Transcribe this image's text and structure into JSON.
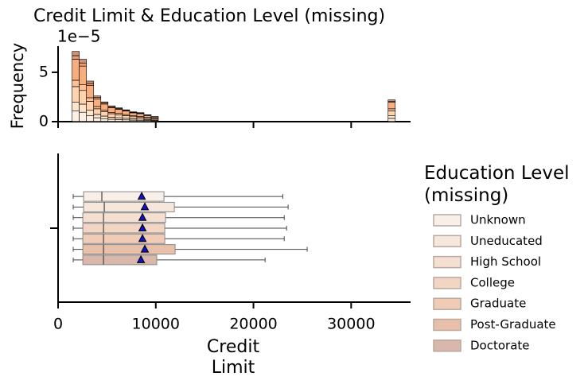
{
  "chart_data": [
    {
      "type": "histogram",
      "title": "Credit Limit & Education Level (missing)",
      "ylabel": "Frequency",
      "y_offset_label": "1e−5",
      "bins": [
        1438,
        2173,
        2908,
        3643,
        4378,
        5113,
        5848,
        6583,
        7318,
        8053,
        8788,
        9523,
        10258,
        33781,
        34516
      ],
      "stacked": true,
      "series": [
        {
          "color": "#fee6ce",
          "values": [
            1.07,
            0.95,
            0.62,
            0.39,
            0.3,
            0.24,
            0.21,
            0.18,
            0.15,
            0.14,
            0.11,
            0.08,
            0.01,
            0.33
          ]
        },
        {
          "color": "#fdd0a2",
          "values": [
            0.92,
            0.82,
            0.53,
            0.34,
            0.26,
            0.21,
            0.18,
            0.16,
            0.13,
            0.12,
            0.09,
            0.07,
            0.01,
            0.29
          ]
        },
        {
          "color": "#fdae6b",
          "values": [
            1.56,
            1.39,
            0.9,
            0.57,
            0.44,
            0.35,
            0.31,
            0.26,
            0.22,
            0.2,
            0.15,
            0.11,
            0.01,
            0.48
          ]
        },
        {
          "color": "#fd8d3c",
          "values": [
            0.64,
            0.57,
            0.37,
            0.23,
            0.18,
            0.14,
            0.13,
            0.11,
            0.09,
            0.08,
            0.06,
            0.05,
            0.005,
            0.2
          ]
        },
        {
          "color": "#f16913",
          "values": [
            2.13,
            1.89,
            1.23,
            0.78,
            0.6,
            0.48,
            0.42,
            0.36,
            0.3,
            0.27,
            0.21,
            0.15,
            0.015,
            0.66
          ]
        },
        {
          "color": "#d94801",
          "values": [
            0.36,
            0.32,
            0.21,
            0.13,
            0.1,
            0.08,
            0.07,
            0.06,
            0.05,
            0.05,
            0.04,
            0.03,
            0.003,
            0.11
          ]
        },
        {
          "color": "#a63603",
          "values": [
            0.43,
            0.38,
            0.25,
            0.16,
            0.12,
            0.1,
            0.08,
            0.07,
            0.06,
            0.05,
            0.04,
            0.03,
            0.003,
            0.13
          ]
        }
      ],
      "xlim": [
        0,
        36000
      ],
      "ylim": [
        0,
        7.65
      ],
      "yticks": [
        0,
        5
      ]
    },
    {
      "type": "box",
      "xlabel": "Credit Limit",
      "legend_title": "Education Level (missing)",
      "xlim": [
        0,
        36000
      ],
      "xticks": [
        0,
        10000,
        20000,
        30000
      ],
      "series": [
        {
          "name": "Unknown",
          "color": "#f8efe8",
          "whislo": 1550,
          "q1": 2610,
          "median": 4480,
          "q3": 10840,
          "whishi": 23000,
          "mean": 8560
        },
        {
          "name": "Uneducated",
          "color": "#f6e7dc",
          "whislo": 1550,
          "q1": 2610,
          "median": 4730,
          "q3": 11900,
          "whishi": 23550,
          "mean": 8880
        },
        {
          "name": "High School",
          "color": "#f5dfd0",
          "whislo": 1550,
          "q1": 2530,
          "median": 4650,
          "q3": 11000,
          "whishi": 23150,
          "mean": 8640
        },
        {
          "name": "College",
          "color": "#f3d5c3",
          "whislo": 1550,
          "q1": 2530,
          "median": 4650,
          "q3": 10920,
          "whishi": 23390,
          "mean": 8640
        },
        {
          "name": "Graduate",
          "color": "#f0cbb5",
          "whislo": 1550,
          "q1": 2530,
          "median": 4650,
          "q3": 10920,
          "whishi": 23150,
          "mean": 8640
        },
        {
          "name": "Post-Graduate",
          "color": "#e8bfa8",
          "whislo": 1550,
          "q1": 2530,
          "median": 4650,
          "q3": 11980,
          "whishi": 25500,
          "mean": 8880
        },
        {
          "name": "Doctorate",
          "color": "#d9b8ab",
          "whislo": 1550,
          "q1": 2530,
          "median": 4650,
          "q3": 10100,
          "whishi": 21190,
          "mean": 8480
        }
      ]
    }
  ]
}
